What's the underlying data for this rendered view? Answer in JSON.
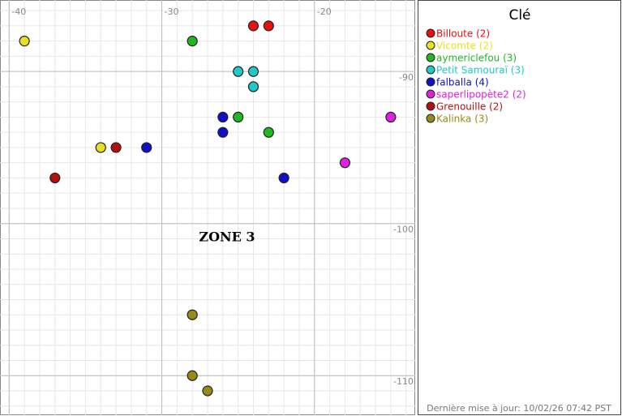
{
  "chart_data": {
    "type": "scatter",
    "xlim": [
      -40.6,
      -13.4
    ],
    "ylim": [
      -112.6,
      -85.3
    ],
    "xticks": [
      -40,
      -30,
      -20
    ],
    "yticks": [
      -90,
      -100,
      -110
    ],
    "grid": true,
    "annotation": "ZONE 3",
    "legend_title": "Clé",
    "footer": "Dernière mise à jour: 10/02/26 07:42 PST",
    "series": [
      {
        "name": "Billoute (2)",
        "color": "#e81010",
        "x": [
          -24,
          -23
        ],
        "y": [
          -87,
          -87
        ]
      },
      {
        "name": "Vicomte (2)",
        "color": "#e8e020",
        "x": [
          -39,
          -34
        ],
        "y": [
          -88,
          -95
        ]
      },
      {
        "name": "aymericlefou (3)",
        "color": "#20b820",
        "x": [
          -28,
          -25,
          -23
        ],
        "y": [
          -88,
          -93,
          -94
        ]
      },
      {
        "name": "Petit Samouraï (3)",
        "color": "#20c8c8",
        "x": [
          -25,
          -24,
          -24
        ],
        "y": [
          -90,
          -90,
          -91
        ]
      },
      {
        "name": "falballa (4)",
        "color": "#1010c8",
        "x": [
          -26,
          -26,
          -31,
          -22
        ],
        "y": [
          -93,
          -94,
          -95,
          -97
        ]
      },
      {
        "name": "saperlipopète2 (2)",
        "color": "#e020e0",
        "x": [
          -15,
          -18
        ],
        "y": [
          -93,
          -96
        ]
      },
      {
        "name": "Grenouille (2)",
        "color": "#b01010",
        "x": [
          -33,
          -37
        ],
        "y": [
          -95,
          -97
        ]
      },
      {
        "name": "Kalinka (3)",
        "color": "#988a18",
        "x": [
          -28,
          -28,
          -27
        ],
        "y": [
          -106,
          -110,
          -111
        ]
      }
    ]
  }
}
